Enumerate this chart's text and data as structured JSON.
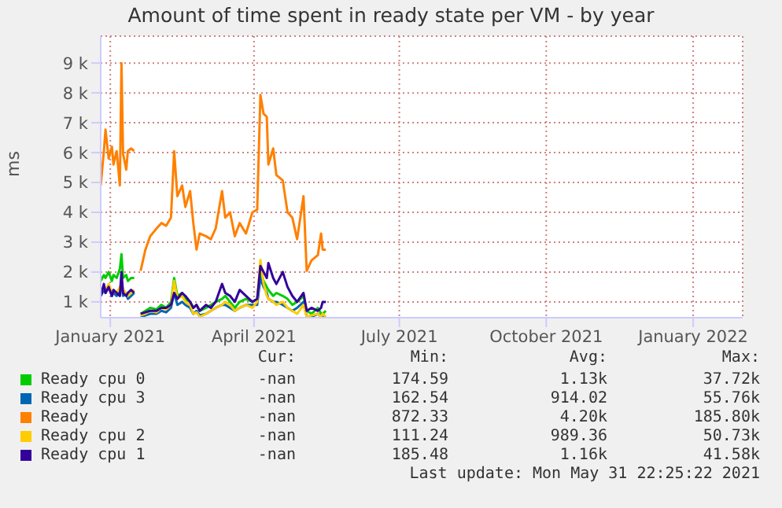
{
  "chart_data": {
    "type": "line",
    "title": "Amount of time spent in ready state per VM - by year",
    "ylabel": "ms",
    "x": [
      "2020-12-26",
      "2020-12-28",
      "2020-12-29",
      "2020-12-31",
      "2021-01-02",
      "2021-01-03",
      "2021-01-05",
      "2021-01-07",
      "2021-01-08",
      "2021-01-09",
      "2021-01-11",
      "2021-01-12",
      "2021-01-14",
      "2021-01-16",
      "2021-01-18",
      "2021-01-20",
      "2021-01-23",
      "2021-01-26",
      "2021-01-30",
      "2021-02-02",
      "2021-02-05",
      "2021-02-08",
      "2021-02-10",
      "2021-02-12",
      "2021-02-15",
      "2021-02-17",
      "2021-02-20",
      "2021-02-22",
      "2021-02-24",
      "2021-02-26",
      "2021-03-02",
      "2021-03-05",
      "2021-03-08",
      "2021-03-12",
      "2021-03-14",
      "2021-03-17",
      "2021-03-20",
      "2021-03-23",
      "2021-03-27",
      "2021-03-31",
      "2021-04-03",
      "2021-04-05",
      "2021-04-07",
      "2021-04-09",
      "2021-04-10",
      "2021-04-13",
      "2021-04-15",
      "2021-04-19",
      "2021-04-22",
      "2021-04-25",
      "2021-04-28",
      "2021-05-02",
      "2021-05-04",
      "2021-05-07",
      "2021-05-11",
      "2021-05-13",
      "2021-05-14",
      "2021-05-16"
    ],
    "series": [
      {
        "name": "Ready cpu 0",
        "color": "#00cc00",
        "values": [
          1700,
          1900,
          1800,
          2000,
          1700,
          1900,
          1800,
          2100,
          2600,
          1800,
          1900,
          1700,
          1800,
          1800,
          null,
          600,
          700,
          800,
          750,
          900,
          800,
          1000,
          1800,
          1200,
          1300,
          1100,
          1000,
          800,
          900,
          700,
          800,
          900,
          1000,
          1100,
          1200,
          1000,
          800,
          1000,
          1100,
          1000,
          1100,
          2000,
          1700,
          1500,
          1400,
          1200,
          1300,
          1200,
          1100,
          900,
          1000,
          1200,
          700,
          600,
          800,
          600,
          600,
          700
        ]
      },
      {
        "name": "Ready cpu 3",
        "color": "#0066b3",
        "values": [
          1200,
          1400,
          1300,
          1500,
          1200,
          1300,
          1200,
          1400,
          1600,
          1200,
          1300,
          1100,
          1200,
          1300,
          null,
          500,
          550,
          600,
          600,
          700,
          650,
          800,
          1300,
          900,
          1000,
          900,
          800,
          600,
          700,
          550,
          600,
          700,
          800,
          900,
          900,
          800,
          700,
          800,
          900,
          900,
          900,
          1800,
          1500,
          1300,
          1100,
          1000,
          1000,
          900,
          800,
          700,
          800,
          1000,
          500,
          500,
          600,
          500,
          500,
          500
        ]
      },
      {
        "name": "Ready",
        "color": "#ff8000",
        "values": [
          4900,
          6050,
          6770,
          5800,
          6200,
          5600,
          6050,
          4900,
          9000,
          5960,
          5430,
          6050,
          6140,
          6050,
          null,
          2040,
          2750,
          3200,
          3460,
          3640,
          3550,
          3820,
          6050,
          4540,
          4900,
          4180,
          4710,
          3640,
          2750,
          3290,
          3200,
          3100,
          3460,
          4710,
          3820,
          4000,
          3200,
          3640,
          3290,
          4000,
          4090,
          7930,
          7300,
          7200,
          5600,
          6140,
          5250,
          5070,
          4000,
          3820,
          3100,
          4540,
          2040,
          2390,
          2570,
          3290,
          2750,
          2750
        ]
      },
      {
        "name": "Ready cpu 2",
        "color": "#ffcc00",
        "values": [
          1300,
          1500,
          1400,
          1600,
          1300,
          1400,
          1300,
          1500,
          1600,
          1400,
          1300,
          1200,
          1300,
          1400,
          null,
          550,
          600,
          700,
          650,
          800,
          750,
          900,
          1700,
          1100,
          1200,
          1000,
          900,
          600,
          650,
          500,
          600,
          700,
          800,
          900,
          1000,
          900,
          700,
          800,
          900,
          800,
          1000,
          2400,
          1600,
          1200,
          1100,
          1000,
          900,
          1000,
          800,
          700,
          600,
          900,
          500,
          550,
          600,
          500,
          600,
          500
        ]
      },
      {
        "name": "Ready cpu 1",
        "color": "#330099",
        "values": [
          1200,
          1600,
          1300,
          1500,
          1200,
          1400,
          1300,
          1200,
          2000,
          1300,
          1200,
          1300,
          1400,
          1300,
          null,
          600,
          650,
          700,
          700,
          800,
          800,
          900,
          1300,
          1100,
          1300,
          1200,
          1000,
          800,
          900,
          700,
          900,
          800,
          1000,
          1600,
          1300,
          1200,
          1000,
          1400,
          1200,
          1000,
          1100,
          2200,
          2000,
          1800,
          2300,
          1800,
          1600,
          2000,
          1500,
          1200,
          1000,
          1300,
          700,
          800,
          700,
          800,
          1000,
          1000
        ]
      }
    ],
    "xlim": [
      "2020-12-26",
      "2022-02-01"
    ],
    "xticks": [
      {
        "value": "2021-01-01",
        "label": "January 2021"
      },
      {
        "value": "2021-04-01",
        "label": "April 2021"
      },
      {
        "value": "2021-07-01",
        "label": "July 2021"
      },
      {
        "value": "2021-10-01",
        "label": "October 2021"
      },
      {
        "value": "2022-01-01",
        "label": "January 2022"
      }
    ],
    "ylim": [
      470,
      9900
    ],
    "yticks": [
      {
        "value": 1000,
        "label": "1 k"
      },
      {
        "value": 2000,
        "label": "2 k"
      },
      {
        "value": 3000,
        "label": "3 k"
      },
      {
        "value": 4000,
        "label": "4 k"
      },
      {
        "value": 5000,
        "label": "5 k"
      },
      {
        "value": 6000,
        "label": "6 k"
      },
      {
        "value": 7000,
        "label": "7 k"
      },
      {
        "value": 8000,
        "label": "8 k"
      },
      {
        "value": 9000,
        "label": "9 k"
      }
    ],
    "grid": true,
    "legend": "bottom",
    "marker": "none",
    "line_style": "solid",
    "annotations": [
      "Cur:",
      "Min:",
      "Avg:",
      "Max:",
      "-nan",
      "174.59",
      "1.13k",
      "37.72k",
      "-nan",
      "162.54",
      "914.02",
      "55.76k",
      "-nan",
      "872.33",
      "4.20k",
      "185.80k",
      "-nan",
      "111.24",
      "989.36",
      "50.73k",
      "-nan",
      "185.48",
      "1.16k",
      "41.58k",
      "Last update: Mon May 31 22:25:22 2021"
    ]
  }
}
